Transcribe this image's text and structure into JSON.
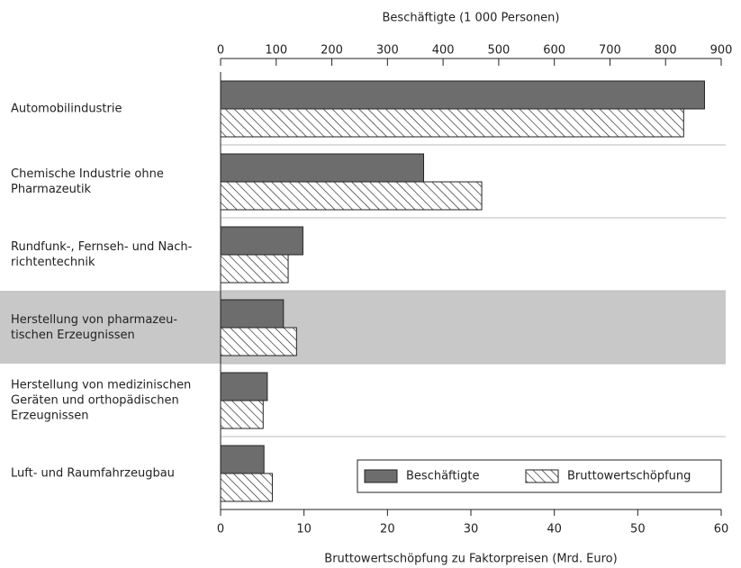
{
  "chart_data": {
    "type": "bar",
    "orientation": "horizontal",
    "categories": [
      [
        "Automobilindustrie"
      ],
      [
        "Chemische Industrie ohne",
        "Pharmazeutik"
      ],
      [
        "Rundfunk-, Fernseh- und Nach-",
        "richtentechnik"
      ],
      [
        "Herstellung von pharmazeu-",
        "tischen Erzeugnissen"
      ],
      [
        "Herstellung von medizinischen",
        "Geräten und orthopädischen",
        "Erzeugnissen"
      ],
      [
        "Luft- und Raumfahrzeugbau"
      ]
    ],
    "highlight_index": 3,
    "series": [
      {
        "name": "Beschäftigte",
        "color": "#6d6d6d",
        "pattern": "solid",
        "axis": "x2",
        "values": [
          870,
          365,
          148,
          113,
          84,
          78
        ]
      },
      {
        "name": "Bruttowertschöpfung",
        "color": "#222222",
        "pattern": "hatch",
        "axis": "x",
        "values": [
          55.5,
          31.3,
          8.1,
          9.1,
          5.1,
          6.2
        ]
      }
    ],
    "xlabel": "Bruttowertschöpfung zu Faktorpreisen (Mrd. Euro)",
    "xlim": [
      0,
      60
    ],
    "xticks": [
      0,
      10,
      20,
      30,
      40,
      50,
      60
    ],
    "x2label": "Beschäftigte (1 000 Personen)",
    "x2lim": [
      0,
      900
    ],
    "x2ticks": [
      0,
      100,
      200,
      300,
      400,
      500,
      600,
      700,
      800,
      900
    ],
    "legend": "lower right"
  }
}
